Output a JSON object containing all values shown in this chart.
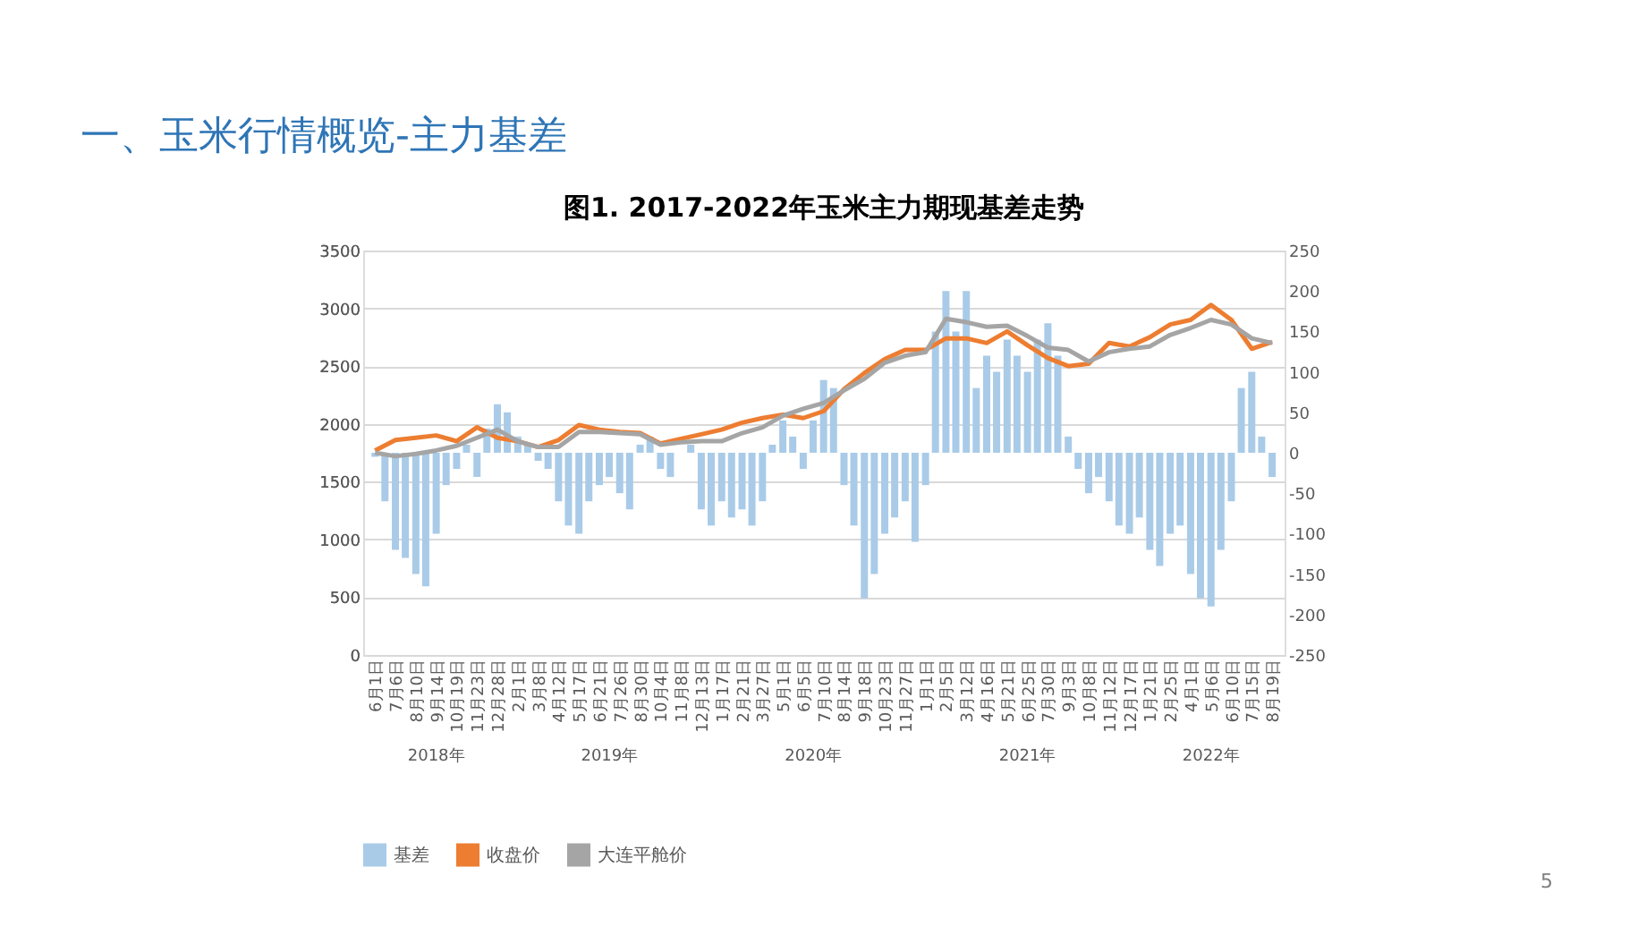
{
  "chart_data": {
    "type": "line",
    "subtitle": "一、玉米行情概览-主力基差",
    "title": "图1. 2017-2022年玉米主力期现基差走势",
    "xlim": [
      "2018-05-27",
      "2022-08-25"
    ],
    "xticks": [
      {
        "value": "2018-06-01",
        "label": "6月1日"
      },
      {
        "value": "2018-07-06",
        "label": "7月6日"
      },
      {
        "value": "2018-08-10",
        "label": "8月10日"
      },
      {
        "value": "2018-09-14",
        "label": "9月14日"
      },
      {
        "value": "2018-10-19",
        "label": "10月19日"
      },
      {
        "value": "2018-11-23",
        "label": "11月23日"
      },
      {
        "value": "2018-12-28",
        "label": "12月28日"
      },
      {
        "value": "2019-02-01",
        "label": "2月1日"
      },
      {
        "value": "2019-03-08",
        "label": "3月8日"
      },
      {
        "value": "2019-04-12",
        "label": "4月12日"
      },
      {
        "value": "2019-05-17",
        "label": "5月17日"
      },
      {
        "value": "2019-06-21",
        "label": "6月21日"
      },
      {
        "value": "2019-07-26",
        "label": "7月26日"
      },
      {
        "value": "2019-08-30",
        "label": "8月30日"
      },
      {
        "value": "2019-10-04",
        "label": "10月4日"
      },
      {
        "value": "2019-11-08",
        "label": "11月8日"
      },
      {
        "value": "2019-12-13",
        "label": "12月13日"
      },
      {
        "value": "2020-01-17",
        "label": "1月17日"
      },
      {
        "value": "2020-02-21",
        "label": "2月21日"
      },
      {
        "value": "2020-03-27",
        "label": "3月27日"
      },
      {
        "value": "2020-05-01",
        "label": "5月1日"
      },
      {
        "value": "2020-06-05",
        "label": "6月5日"
      },
      {
        "value": "2020-07-10",
        "label": "7月10日"
      },
      {
        "value": "2020-08-14",
        "label": "8月14日"
      },
      {
        "value": "2020-09-18",
        "label": "9月18日"
      },
      {
        "value": "2020-10-23",
        "label": "10月23日"
      },
      {
        "value": "2020-11-27",
        "label": "11月27日"
      },
      {
        "value": "2021-01-01",
        "label": "1月1日"
      },
      {
        "value": "2021-02-05",
        "label": "2月5日"
      },
      {
        "value": "2021-03-12",
        "label": "3月12日"
      },
      {
        "value": "2021-04-16",
        "label": "4月16日"
      },
      {
        "value": "2021-05-21",
        "label": "5月21日"
      },
      {
        "value": "2021-06-25",
        "label": "6月25日"
      },
      {
        "value": "2021-07-30",
        "label": "7月30日"
      },
      {
        "value": "2021-09-03",
        "label": "9月3日"
      },
      {
        "value": "2021-10-08",
        "label": "10月8日"
      },
      {
        "value": "2021-11-12",
        "label": "11月12日"
      },
      {
        "value": "2021-12-17",
        "label": "12月17日"
      },
      {
        "value": "2022-01-21",
        "label": "1月21日"
      },
      {
        "value": "2022-02-25",
        "label": "2月25日"
      },
      {
        "value": "2022-04-01",
        "label": "4月1日"
      },
      {
        "value": "2022-05-06",
        "label": "5月6日"
      },
      {
        "value": "2022-06-10",
        "label": "6月10日"
      },
      {
        "value": "2022-07-15",
        "label": "7月15日"
      },
      {
        "value": "2022-08-19",
        "label": "8月19日"
      }
    ],
    "ylim": [
      0,
      3500
    ],
    "yticks": [
      0,
      500,
      1000,
      1500,
      2000,
      2500,
      3000,
      3500
    ],
    "y2lim": [
      -250,
      250
    ],
    "y2ticks": [
      -250,
      -200,
      -150,
      -100,
      -50,
      0,
      50,
      100,
      150,
      200,
      250
    ],
    "grid": "y",
    "legend": "bottom",
    "annotations": [
      "2018年",
      "2019年",
      "2020年",
      "2021年",
      "2022年",
      "5"
    ],
    "series": [
      {
        "name": "基差",
        "type": "bar",
        "axis": "y2",
        "color": "#a9cbe8",
        "x": [
          "2018-06-01",
          "2018-06-18",
          "2018-07-06",
          "2018-07-23",
          "2018-08-10",
          "2018-08-27",
          "2018-09-14",
          "2018-10-01",
          "2018-10-19",
          "2018-11-05",
          "2018-11-23",
          "2018-12-10",
          "2018-12-28",
          "2019-01-14",
          "2019-02-01",
          "2019-02-18",
          "2019-03-08",
          "2019-03-25",
          "2019-04-12",
          "2019-04-29",
          "2019-05-17",
          "2019-06-03",
          "2019-06-21",
          "2019-07-08",
          "2019-07-26",
          "2019-08-12",
          "2019-08-30",
          "2019-09-16",
          "2019-10-04",
          "2019-10-21",
          "2019-11-08",
          "2019-11-25",
          "2019-12-13",
          "2019-12-30",
          "2020-01-17",
          "2020-02-03",
          "2020-02-21",
          "2020-03-09",
          "2020-03-27",
          "2020-04-13",
          "2020-05-01",
          "2020-05-18",
          "2020-06-05",
          "2020-06-22",
          "2020-07-10",
          "2020-07-27",
          "2020-08-14",
          "2020-08-31",
          "2020-09-18",
          "2020-10-05",
          "2020-10-23",
          "2020-11-09",
          "2020-11-27",
          "2020-12-14",
          "2021-01-01",
          "2021-01-18",
          "2021-02-05",
          "2021-02-22",
          "2021-03-12",
          "2021-03-29",
          "2021-04-16",
          "2021-05-03",
          "2021-05-21",
          "2021-06-07",
          "2021-06-25",
          "2021-07-12",
          "2021-07-30",
          "2021-08-16",
          "2021-09-03",
          "2021-09-20",
          "2021-10-08",
          "2021-10-25",
          "2021-11-12",
          "2021-11-29",
          "2021-12-17",
          "2022-01-03",
          "2022-01-21",
          "2022-02-07",
          "2022-02-25",
          "2022-03-14",
          "2022-04-01",
          "2022-04-18",
          "2022-05-06",
          "2022-05-23",
          "2022-06-10",
          "2022-06-27",
          "2022-07-15",
          "2022-08-01",
          "2022-08-19"
        ],
        "values": [
          -5,
          -60,
          -120,
          -130,
          -150,
          -165,
          -100,
          -40,
          -20,
          10,
          -30,
          30,
          60,
          50,
          20,
          10,
          -10,
          -20,
          -60,
          -90,
          -100,
          -60,
          -40,
          -30,
          -50,
          -70,
          10,
          20,
          -20,
          -30,
          null,
          10,
          -70,
          -90,
          -60,
          -80,
          -70,
          -90,
          -60,
          10,
          40,
          20,
          -20,
          40,
          90,
          80,
          -40,
          -90,
          -180,
          -150,
          -100,
          -80,
          -60,
          -110,
          -40,
          150,
          200,
          150,
          200,
          80,
          120,
          100,
          140,
          120,
          100,
          140,
          160,
          120,
          20,
          -20,
          -50,
          -30,
          -60,
          -90,
          -100,
          -80,
          -120,
          -140,
          -100,
          -90,
          -150,
          -180,
          -190,
          -120,
          -60,
          80,
          100,
          20,
          -30
        ]
      },
      {
        "name": "收盘价",
        "color": "#ed7d31",
        "x": [
          "2018-06-01",
          "2018-07-06",
          "2018-08-10",
          "2018-09-14",
          "2018-10-19",
          "2018-11-23",
          "2018-12-28",
          "2019-02-01",
          "2019-03-08",
          "2019-04-12",
          "2019-05-17",
          "2019-06-21",
          "2019-07-26",
          "2019-08-30",
          "2019-10-04",
          "2019-11-08",
          "2019-12-13",
          "2020-01-17",
          "2020-02-21",
          "2020-03-27",
          "2020-05-01",
          "2020-06-05",
          "2020-07-10",
          "2020-08-14",
          "2020-09-18",
          "2020-10-23",
          "2020-11-27",
          "2021-01-01",
          "2021-02-05",
          "2021-03-12",
          "2021-04-16",
          "2021-05-21",
          "2021-06-25",
          "2021-07-30",
          "2021-09-03",
          "2021-10-08",
          "2021-11-12",
          "2021-12-17",
          "2022-01-21",
          "2022-02-25",
          "2022-04-01",
          "2022-05-06",
          "2022-06-10",
          "2022-07-15",
          "2022-08-19"
        ],
        "values": [
          1770,
          1860,
          1880,
          1900,
          1850,
          1970,
          1880,
          1850,
          1800,
          1860,
          1990,
          1950,
          1930,
          1920,
          1830,
          1870,
          1910,
          1950,
          2010,
          2050,
          2080,
          2050,
          2110,
          2300,
          2440,
          2560,
          2640,
          2640,
          2740,
          2740,
          2700,
          2800,
          2680,
          2570,
          2500,
          2520,
          2700,
          2670,
          2750,
          2860,
          2900,
          3030,
          2900,
          2650,
          2710
        ]
      },
      {
        "name": "大连平舱价",
        "color": "#a5a5a5",
        "x": [
          "2018-06-01",
          "2018-07-06",
          "2018-08-10",
          "2018-09-14",
          "2018-10-19",
          "2018-11-23",
          "2018-12-28",
          "2019-02-01",
          "2019-03-08",
          "2019-04-12",
          "2019-05-17",
          "2019-06-21",
          "2019-07-26",
          "2019-08-30",
          "2019-10-04",
          "2019-11-08",
          "2019-12-13",
          "2020-01-17",
          "2020-02-21",
          "2020-03-27",
          "2020-05-01",
          "2020-06-05",
          "2020-07-10",
          "2020-08-14",
          "2020-09-18",
          "2020-10-23",
          "2020-11-27",
          "2021-01-01",
          "2021-02-05",
          "2021-03-12",
          "2021-04-16",
          "2021-05-21",
          "2021-06-25",
          "2021-07-30",
          "2021-09-03",
          "2021-10-08",
          "2021-11-12",
          "2021-12-17",
          "2022-01-21",
          "2022-02-25",
          "2022-04-01",
          "2022-05-06",
          "2022-06-10",
          "2022-07-15",
          "2022-08-19"
        ],
        "values": [
          1750,
          1720,
          1740,
          1770,
          1810,
          1880,
          1950,
          1850,
          1800,
          1800,
          1930,
          1930,
          1920,
          1910,
          1820,
          1840,
          1850,
          1850,
          1920,
          1970,
          2070,
          2130,
          2180,
          2290,
          2390,
          2530,
          2590,
          2620,
          2910,
          2880,
          2840,
          2850,
          2760,
          2660,
          2640,
          2540,
          2620,
          2650,
          2670,
          2770,
          2830,
          2900,
          2860,
          2740,
          2700
        ]
      }
    ]
  }
}
